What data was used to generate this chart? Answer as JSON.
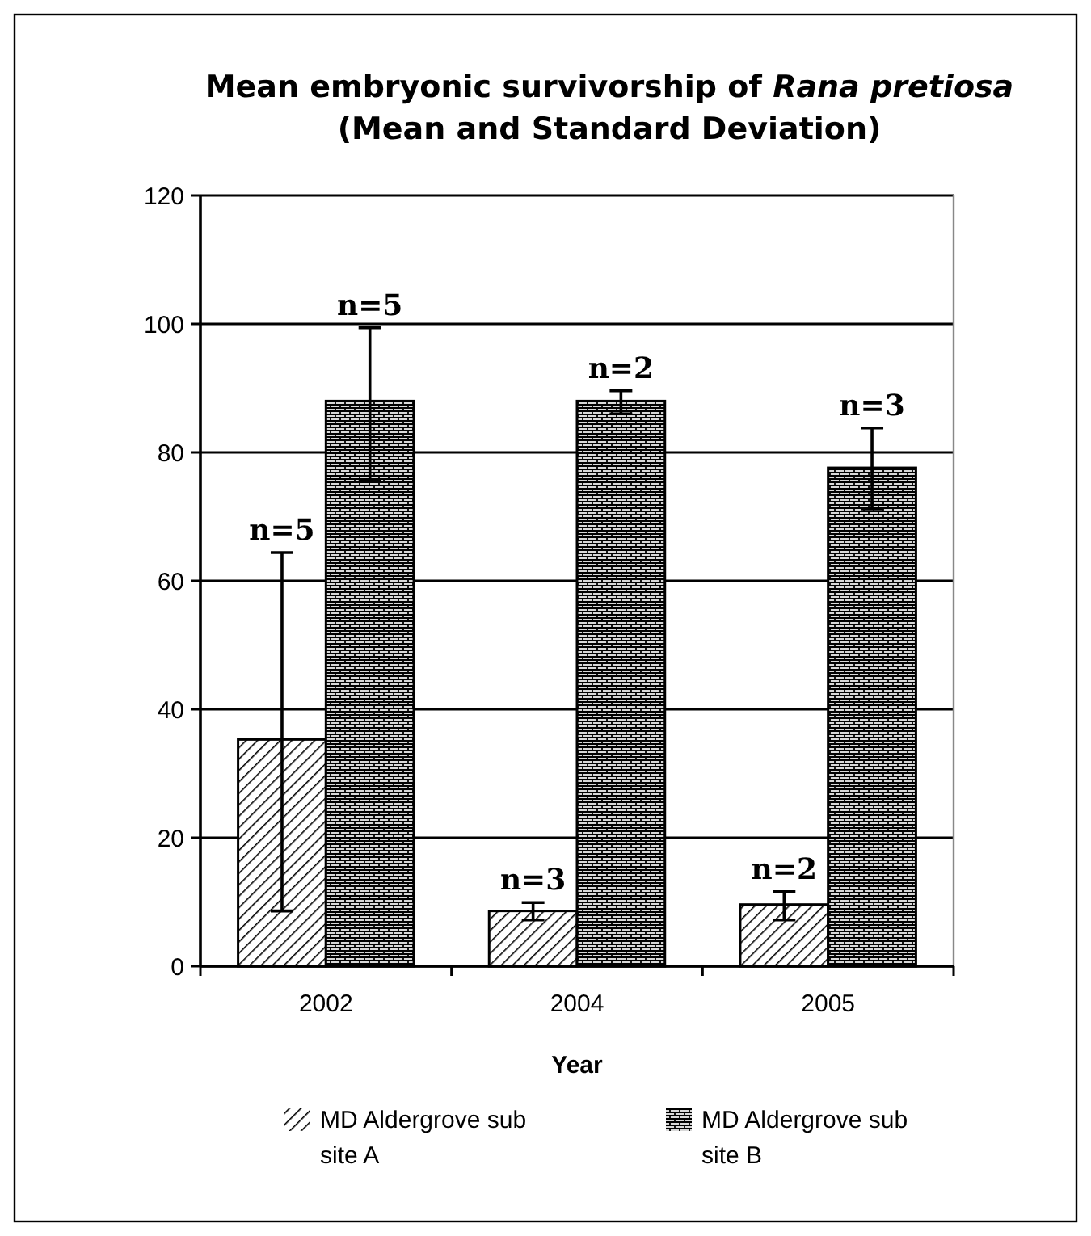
{
  "chart_data": {
    "type": "bar",
    "title": "Mean embryonic survivorship of Rana pretiosa",
    "subtitle": "(Mean and Standard Deviation)",
    "xlabel": "Year",
    "categories": [
      "2002",
      "2004",
      "2005"
    ],
    "series": [
      {
        "name": "MD Aldergrove sub site A",
        "color": "#000000",
        "values": [
          35.3,
          8.6,
          9.6
        ],
        "errors": [
          [
            8.6,
            64.4
          ],
          [
            7.2,
            9.9
          ],
          [
            7.2,
            11.6
          ]
        ]
      },
      {
        "name": "MD Aldergrove sub site B",
        "color": "#000000",
        "values": [
          88,
          88,
          77.6
        ],
        "errors": [
          [
            75.6,
            99.4
          ],
          [
            86,
            89.6
          ],
          [
            71.2,
            83.8
          ]
        ]
      }
    ],
    "annotations": [
      {
        "text": "n=5",
        "x": "2002",
        "y": 64.4
      },
      {
        "text": "n=5",
        "x": "2002",
        "y": 88
      },
      {
        "text": "n=3",
        "x": "2004",
        "y": 8.6
      },
      {
        "text": "n=2",
        "x": "2004",
        "y": 88
      },
      {
        "text": "n=2",
        "x": "2005",
        "y": 9.6
      },
      {
        "text": "n=3",
        "x": "2005",
        "y": 77.6
      }
    ],
    "ylim": [
      0,
      120
    ],
    "yticks": [
      0,
      20,
      40,
      60,
      80,
      100,
      120
    ],
    "grid": "y",
    "legend": "bottom"
  }
}
